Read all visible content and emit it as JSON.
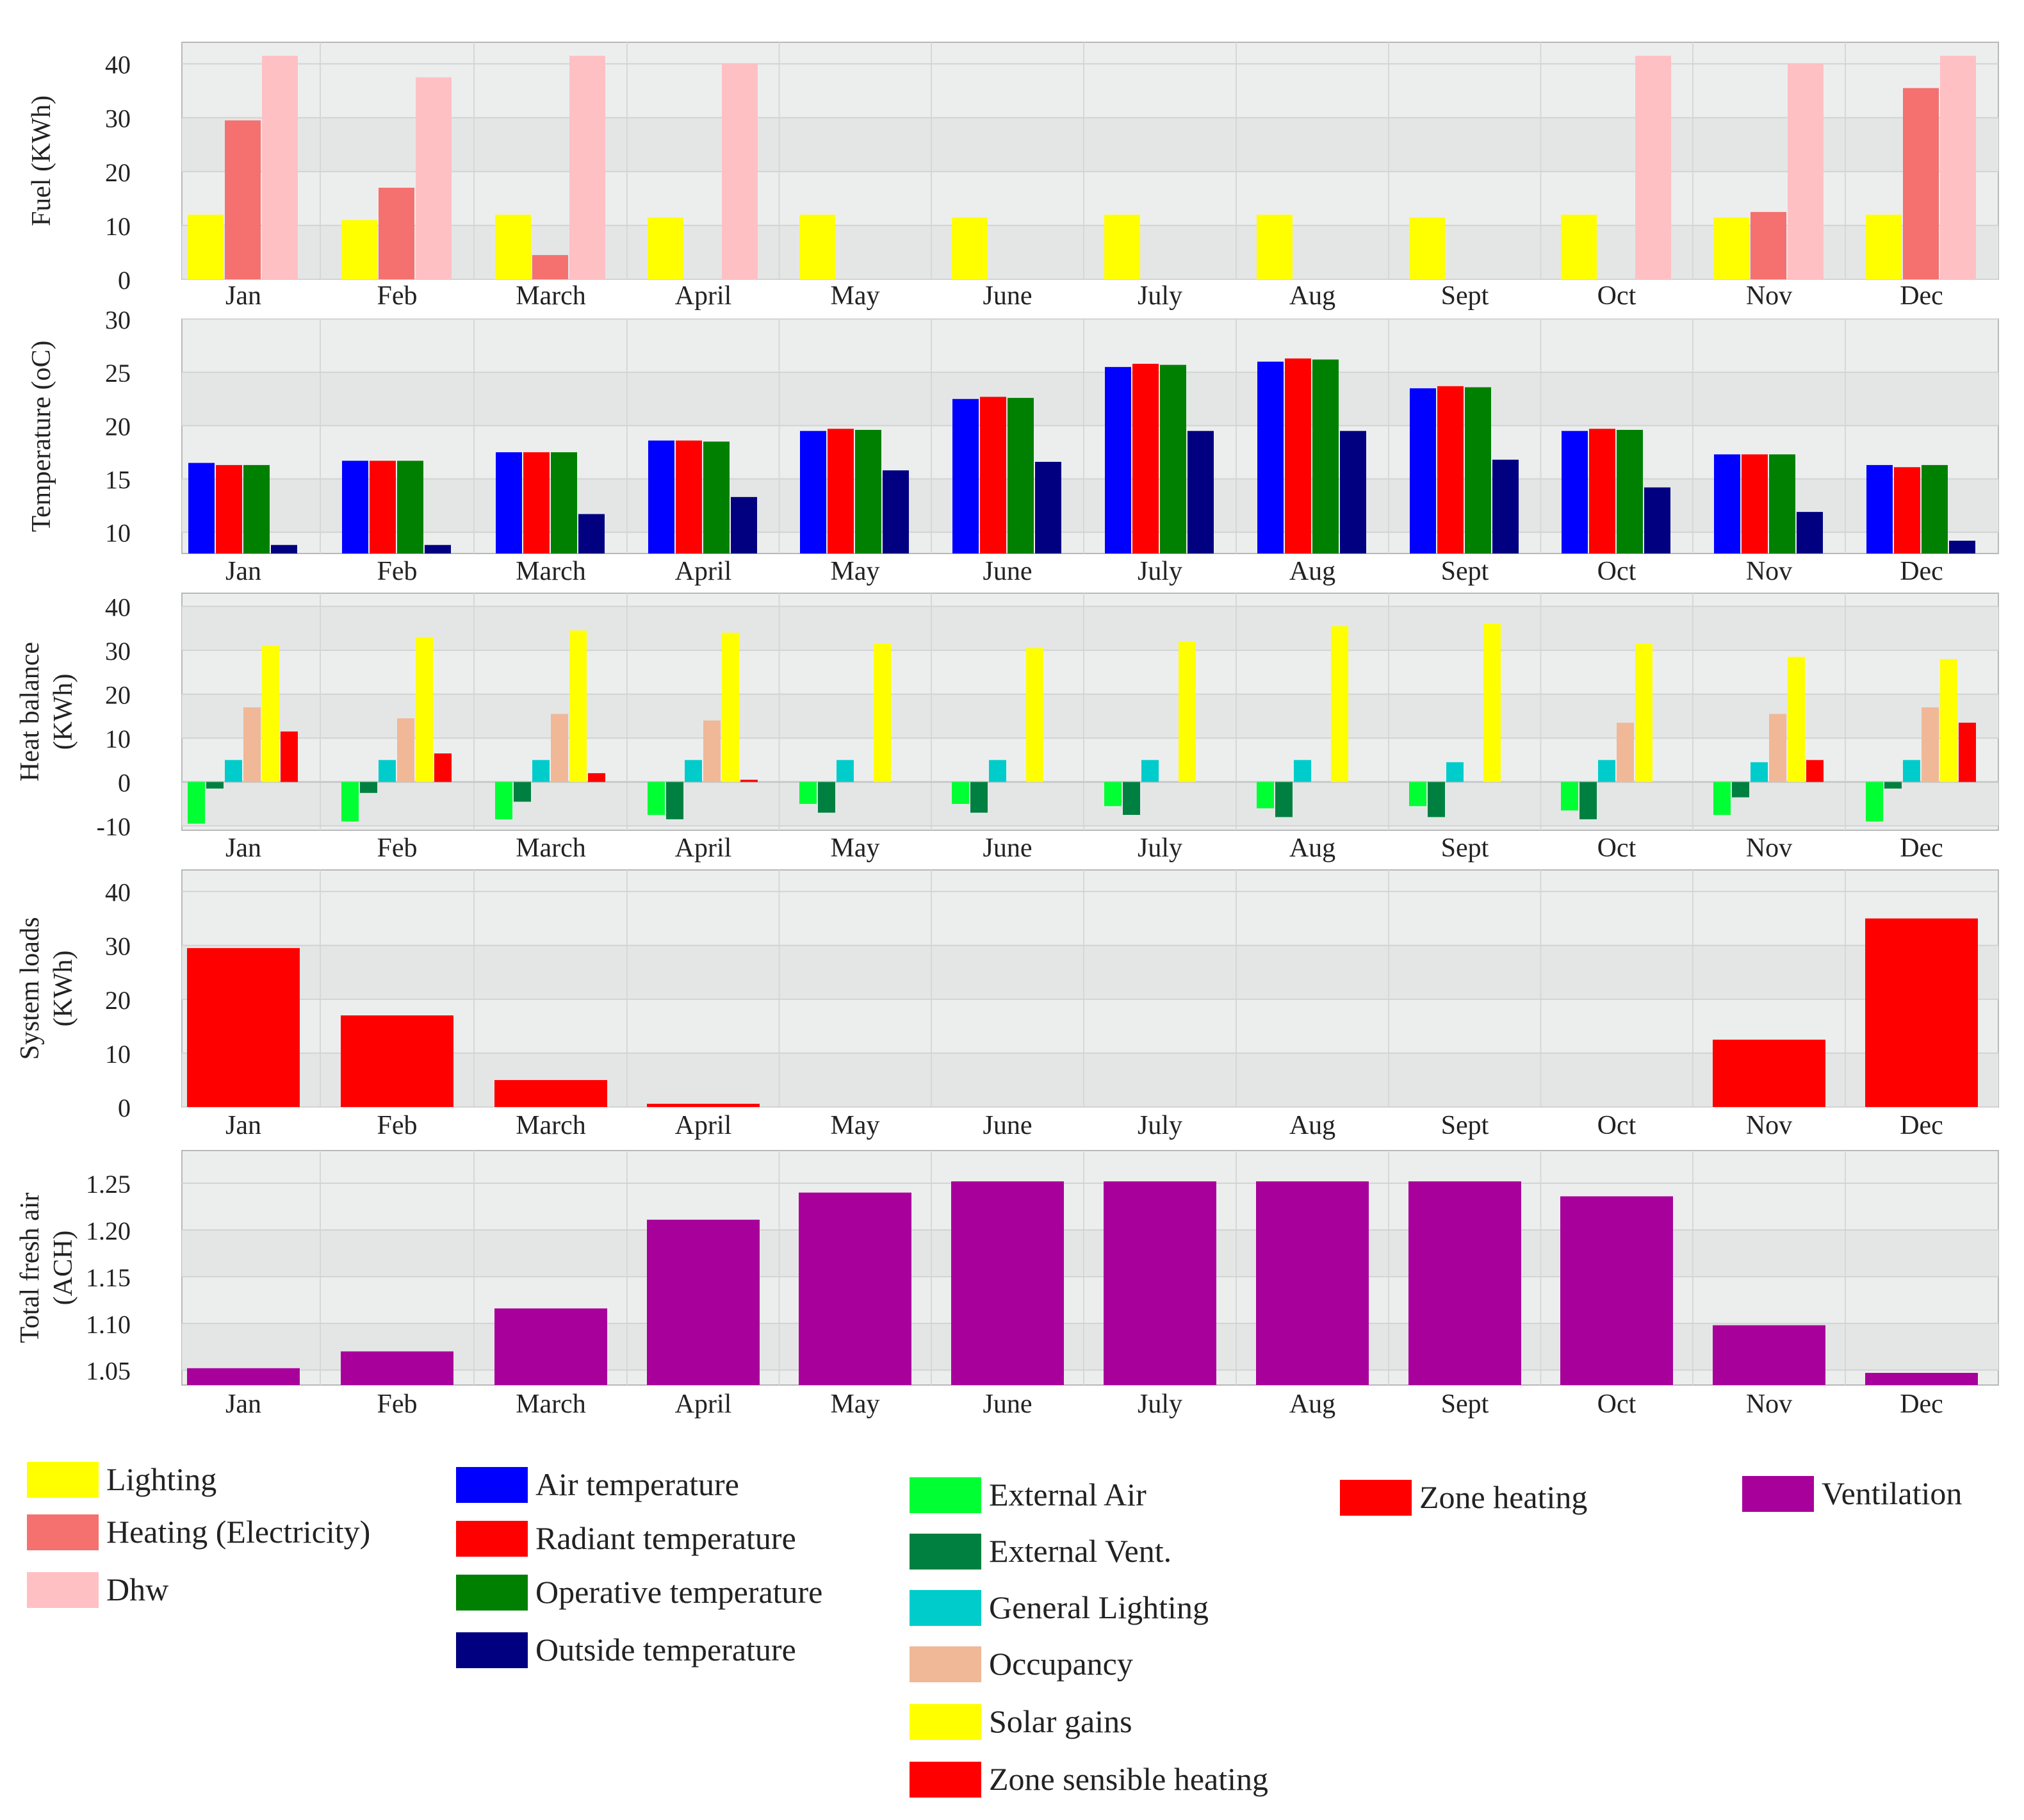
{
  "months": [
    "Jan",
    "Feb",
    "March",
    "April",
    "May",
    "June",
    "July",
    "Aug",
    "Sept",
    "Oct",
    "Nov",
    "Dec"
  ],
  "chart_data": [
    {
      "id": "fuel",
      "type": "bar",
      "ylabel": "Fuel (KWh)",
      "ylim": [
        0,
        44
      ],
      "yticks": [
        0,
        10,
        20,
        30,
        40
      ],
      "series": [
        {
          "name": "Lighting",
          "color": "#ffff00",
          "values": [
            12,
            11,
            12,
            11.5,
            12,
            11.5,
            12,
            12,
            11.5,
            12,
            11.5,
            12
          ]
        },
        {
          "name": "Heating (Electricity)",
          "color": "#f4716f",
          "values": [
            29.5,
            17,
            4.5,
            0,
            0,
            0,
            0,
            0,
            0,
            0,
            12.5,
            35.5
          ]
        },
        {
          "name": "Dhw",
          "color": "#ffc0c4",
          "values": [
            41.5,
            37.5,
            41.5,
            40,
            0,
            0,
            0,
            0,
            0,
            41.5,
            40,
            41.5
          ]
        }
      ]
    },
    {
      "id": "temperature",
      "type": "bar",
      "ylabel": "Temperature (oC)",
      "ylim": [
        8,
        30
      ],
      "yticks": [
        10,
        15,
        20,
        25,
        30
      ],
      "series": [
        {
          "name": "Air temperature",
          "color": "#0000ff",
          "values": [
            16.5,
            16.7,
            17.5,
            18.6,
            19.5,
            22.5,
            25.5,
            26,
            23.5,
            19.5,
            17.3,
            16.3
          ]
        },
        {
          "name": "Radiant temperature",
          "color": "#ff0000",
          "values": [
            16.3,
            16.7,
            17.5,
            18.6,
            19.7,
            22.7,
            25.8,
            26.3,
            23.7,
            19.7,
            17.3,
            16.1
          ]
        },
        {
          "name": "Operative temperature",
          "color": "#008000",
          "values": [
            16.3,
            16.7,
            17.5,
            18.5,
            19.6,
            22.6,
            25.7,
            26.2,
            23.6,
            19.6,
            17.3,
            16.3
          ]
        },
        {
          "name": "Outside temperature",
          "color": "#000080",
          "values": [
            8.8,
            8.8,
            11.7,
            13.3,
            15.8,
            16.6,
            19.5,
            19.5,
            16.8,
            14.2,
            11.9,
            9.2
          ]
        }
      ]
    },
    {
      "id": "heat-balance",
      "type": "bar",
      "ylabel": [
        "Heat balance",
        "(KWh)"
      ],
      "ylim": [
        -11,
        43
      ],
      "yticks": [
        -10,
        0,
        10,
        20,
        30,
        40
      ],
      "series": [
        {
          "name": "External Air",
          "color": "#00ff33",
          "values": [
            -9.5,
            -9,
            -8.5,
            -7.5,
            -5,
            -5,
            -5.5,
            -6,
            -5.5,
            -6.5,
            -7.5,
            -9
          ]
        },
        {
          "name": "External Vent.",
          "color": "#008040",
          "values": [
            -1.5,
            -2.5,
            -4.5,
            -8.5,
            -7,
            -7,
            -7.5,
            -8,
            -8,
            -8.5,
            -3.5,
            -1.5
          ]
        },
        {
          "name": "General Lighting",
          "color": "#00cccc",
          "values": [
            5,
            5,
            5,
            5,
            5,
            5,
            5,
            5,
            4.5,
            5,
            4.5,
            5
          ]
        },
        {
          "name": "Occupancy",
          "color": "#f0b896",
          "values": [
            17,
            14.5,
            15.5,
            14,
            0,
            0,
            0,
            0,
            0,
            13.5,
            15.5,
            17
          ]
        },
        {
          "name": "Solar gains",
          "color": "#ffff00",
          "values": [
            31,
            33,
            34.5,
            34,
            31.5,
            30.5,
            32,
            35.5,
            36,
            31.5,
            28.5,
            28
          ]
        },
        {
          "name": "Zone sensible heating",
          "color": "#ff0000",
          "values": [
            11.5,
            6.5,
            2,
            0.5,
            0,
            0,
            0,
            0,
            0,
            0,
            5,
            13.5
          ]
        }
      ]
    },
    {
      "id": "system-loads",
      "type": "bar",
      "ylabel": [
        "System loads",
        "(KWh)"
      ],
      "ylim": [
        0,
        44
      ],
      "yticks": [
        0,
        10,
        20,
        30,
        40
      ],
      "series": [
        {
          "name": "Zone heating",
          "color": "#ff0000",
          "values": [
            29.5,
            17,
            5,
            0.6,
            0,
            0,
            0,
            0,
            0,
            0,
            12.5,
            35
          ]
        }
      ]
    },
    {
      "id": "fresh-air",
      "type": "bar",
      "ylabel": [
        "Total fresh air",
        "(ACH)"
      ],
      "ylim": [
        1.034,
        1.285
      ],
      "yticks": [
        1.05,
        1.1,
        1.15,
        1.2,
        1.25
      ],
      "ytick_labels": [
        "1.05",
        "1.10",
        "1.15",
        "1.20",
        "1.25"
      ],
      "series": [
        {
          "name": "Ventilation",
          "color": "#a8009a",
          "values": [
            1.052,
            1.07,
            1.116,
            1.211,
            1.24,
            1.252,
            1.252,
            1.252,
            1.252,
            1.236,
            1.098,
            1.047
          ]
        }
      ]
    }
  ],
  "legend": [
    {
      "items": [
        {
          "label": "Lighting",
          "color": "#ffff00"
        },
        {
          "label": "Heating (Electricity)",
          "color": "#f4716f"
        },
        {
          "label": "Dhw",
          "color": "#ffc0c4"
        }
      ]
    },
    {
      "items": [
        {
          "label": "Air temperature",
          "color": "#0000ff"
        },
        {
          "label": "Radiant temperature",
          "color": "#ff0000"
        },
        {
          "label": "Operative temperature",
          "color": "#008000"
        },
        {
          "label": "Outside temperature",
          "color": "#000080"
        }
      ]
    },
    {
      "items": [
        {
          "label": "External Air",
          "color": "#00ff33"
        },
        {
          "label": "External Vent.",
          "color": "#008040"
        },
        {
          "label": "General Lighting",
          "color": "#00cccc"
        },
        {
          "label": "Occupancy",
          "color": "#f0b896"
        },
        {
          "label": "Solar gains",
          "color": "#ffff00"
        },
        {
          "label": "Zone sensible heating",
          "color": "#ff0000"
        }
      ]
    },
    {
      "items": [
        {
          "label": "Zone heating",
          "color": "#ff0000"
        }
      ]
    },
    {
      "items": [
        {
          "label": "Ventilation",
          "color": "#a8009a"
        }
      ]
    }
  ]
}
